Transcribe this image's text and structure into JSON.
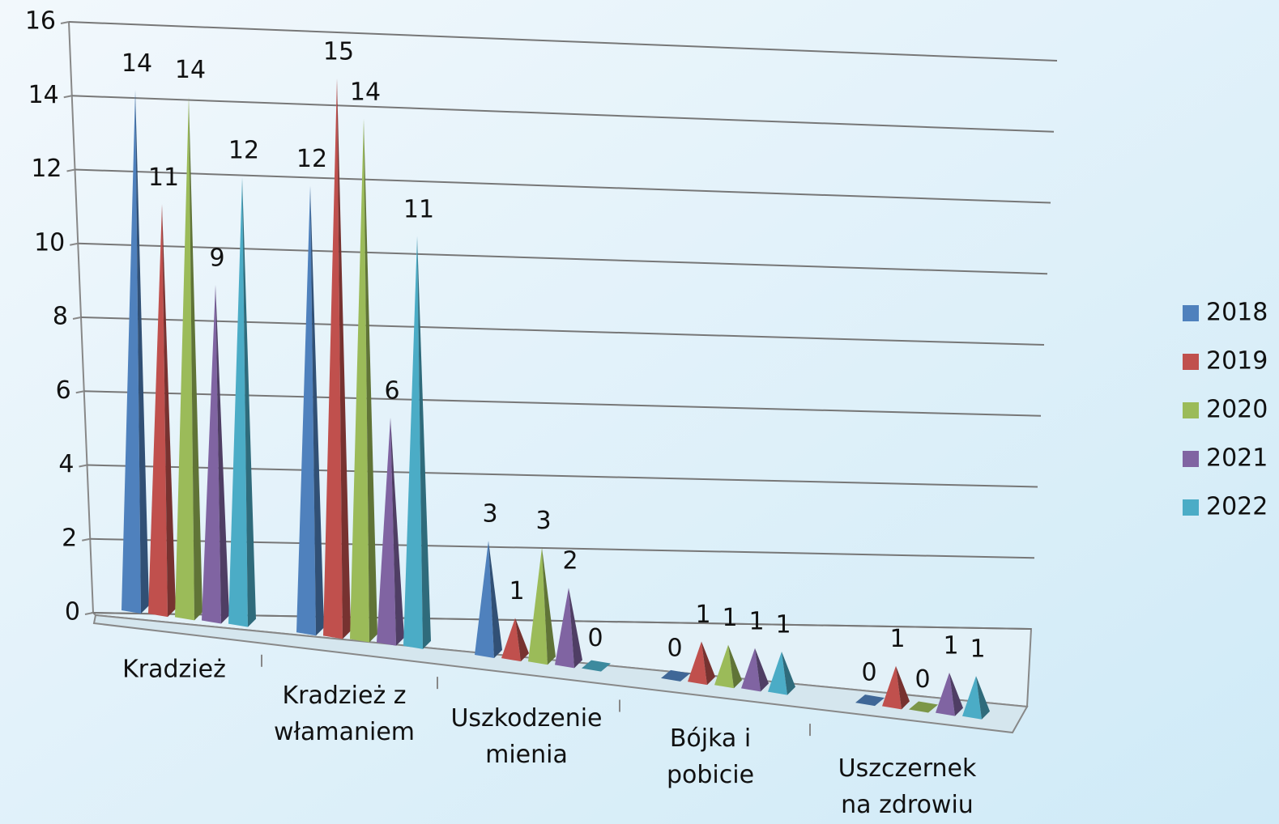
{
  "chart_data": {
    "type": "pyramid3d",
    "categories": [
      "Kradzież",
      "Kradzież z włamaniem",
      "Uszkodzenie mienia",
      "Bójka i pobicie",
      "Uszczernek na zdrowiu"
    ],
    "series": [
      {
        "name": "2018",
        "color": "#4f81bd",
        "values": [
          14,
          12,
          3,
          0,
          0
        ]
      },
      {
        "name": "2019",
        "color": "#c0504d",
        "values": [
          11,
          15,
          1,
          1,
          1
        ]
      },
      {
        "name": "2020",
        "color": "#9bbb59",
        "values": [
          14,
          14,
          3,
          1,
          0
        ]
      },
      {
        "name": "2021",
        "color": "#8064a2",
        "values": [
          9,
          6,
          2,
          1,
          1
        ]
      },
      {
        "name": "2022",
        "color": "#4bacc6",
        "values": [
          12,
          11,
          0,
          1,
          1
        ]
      }
    ],
    "ylim": [
      0,
      16
    ],
    "yticks": [
      0,
      2,
      4,
      6,
      8,
      10,
      12,
      14,
      16
    ],
    "grid": true,
    "legend": "right"
  }
}
